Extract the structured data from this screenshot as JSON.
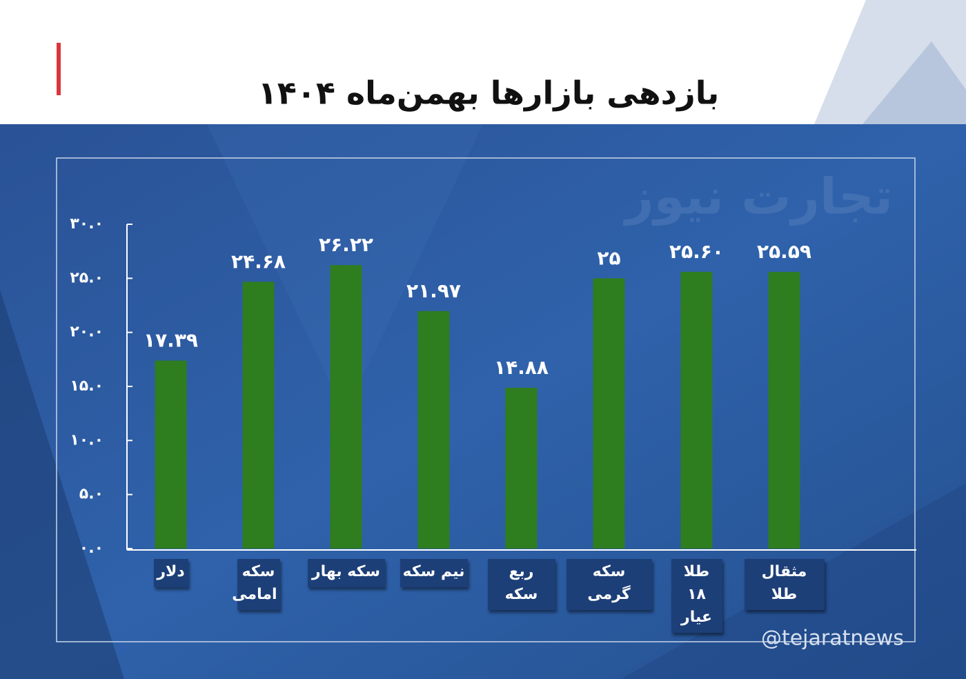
{
  "chart_data": {
    "type": "bar",
    "title": "بازدهی بازارها بهمن‌ماه ۱۴۰۴",
    "watermark": "تجارت نیوز",
    "handle": "@tejaratnews",
    "categories": [
      "دلار",
      "سکه امامی",
      "سکه بهار",
      "نیم سکه",
      "ربع سکه",
      "سکه گرمی",
      "طلا ۱۸ عیار",
      "مثقال طلا"
    ],
    "values": [
      17.39,
      24.68,
      26.22,
      21.97,
      14.88,
      25,
      25.6,
      25.59
    ],
    "value_labels": [
      "۱۷.۳۹",
      "۲۴.۶۸",
      "۲۶.۲۲",
      "۲۱.۹۷",
      "۱۴.۸۸",
      "۲۵",
      "۲۵.۶۰",
      "۲۵.۵۹"
    ],
    "color": "#2e7d1f",
    "ylim": [
      0,
      30
    ],
    "yticks": [
      {
        "value": 0,
        "label": "۰.۰"
      },
      {
        "value": 5,
        "label": "۵.۰"
      },
      {
        "value": 10,
        "label": "۱۰.۰"
      },
      {
        "value": 15,
        "label": "۱۵.۰"
      },
      {
        "value": 20,
        "label": "۲۰.۰"
      },
      {
        "value": 25,
        "label": "۲۵.۰"
      },
      {
        "value": 30,
        "label": "۳۰.۰"
      }
    ]
  }
}
